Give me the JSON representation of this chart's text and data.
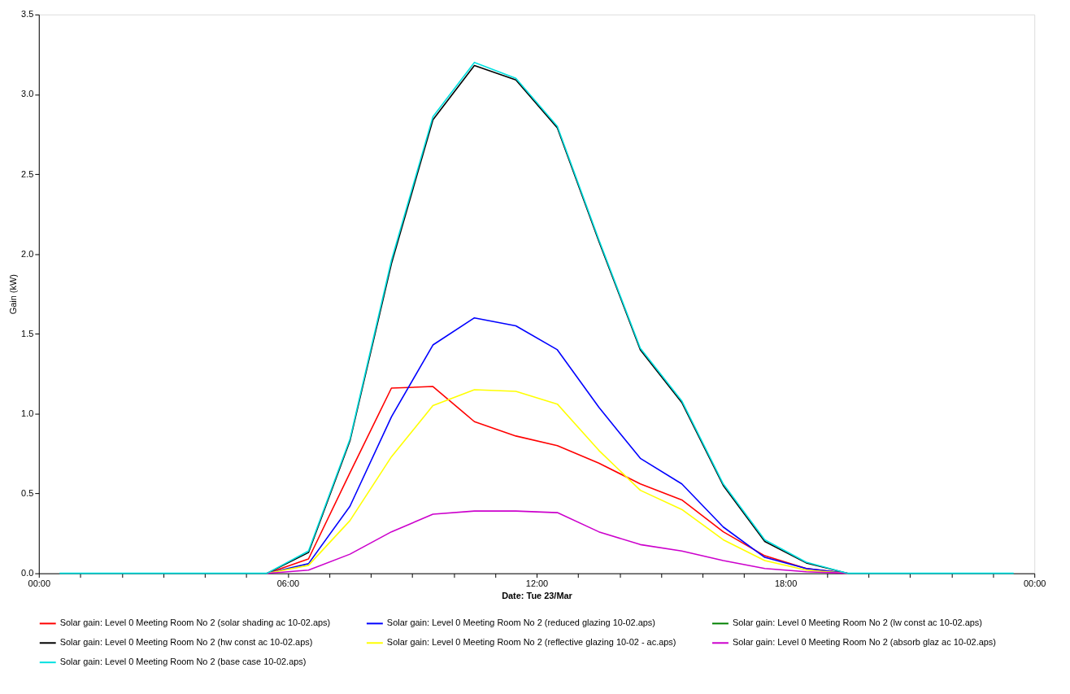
{
  "chart_data": {
    "type": "line",
    "xlabel": "Date: Tue 23/Mar",
    "ylabel": "Gain (kW)",
    "x": [
      0.5,
      1.5,
      2.5,
      3.5,
      4.5,
      5.5,
      6.5,
      7.5,
      8.5,
      9.5,
      10.5,
      11.5,
      12.5,
      13.5,
      14.5,
      15.5,
      16.5,
      17.5,
      18.5,
      19.5,
      20.5,
      21.5,
      22.5,
      23.5
    ],
    "xlim": [
      0,
      24
    ],
    "xticks": [
      {
        "value": 0,
        "label": "00:00"
      },
      {
        "value": 1,
        "label": null
      },
      {
        "value": 2,
        "label": null
      },
      {
        "value": 3,
        "label": null
      },
      {
        "value": 4,
        "label": null
      },
      {
        "value": 5,
        "label": null
      },
      {
        "value": 6,
        "label": "06:00"
      },
      {
        "value": 7,
        "label": null
      },
      {
        "value": 8,
        "label": null
      },
      {
        "value": 9,
        "label": null
      },
      {
        "value": 10,
        "label": null
      },
      {
        "value": 11,
        "label": null
      },
      {
        "value": 12,
        "label": "12:00"
      },
      {
        "value": 13,
        "label": null
      },
      {
        "value": 14,
        "label": null
      },
      {
        "value": 15,
        "label": null
      },
      {
        "value": 16,
        "label": null
      },
      {
        "value": 17,
        "label": null
      },
      {
        "value": 18,
        "label": "18:00"
      },
      {
        "value": 19,
        "label": null
      },
      {
        "value": 20,
        "label": null
      },
      {
        "value": 21,
        "label": null
      },
      {
        "value": 22,
        "label": null
      },
      {
        "value": 23,
        "label": null
      },
      {
        "value": 24,
        "label": "00:00"
      }
    ],
    "ylim": [
      0,
      3.5
    ],
    "yticks": [
      {
        "value": 0,
        "label": "0.0"
      },
      {
        "value": 0.5,
        "label": "0.5"
      },
      {
        "value": 1,
        "label": "1.0"
      },
      {
        "value": 1.5,
        "label": "1.5"
      },
      {
        "value": 2,
        "label": "2.0"
      },
      {
        "value": 2.5,
        "label": "2.5"
      },
      {
        "value": 3,
        "label": "3.0"
      },
      {
        "value": 3.5,
        "label": "3.5"
      }
    ],
    "grid": false,
    "legend": "bottom",
    "marker": "none",
    "line_style": "solid",
    "series": [
      {
        "name": "Solar gain: Level 0 Meeting Room No 2 (solar shading ac 10-02.aps)",
        "color": "#ff0000",
        "values": [
          null,
          null,
          null,
          null,
          null,
          0,
          0.09,
          0.63,
          1.16,
          1.17,
          0.95,
          0.86,
          0.8,
          0.69,
          0.56,
          0.46,
          0.26,
          0.11,
          0.03,
          0,
          null,
          null,
          null,
          null
        ]
      },
      {
        "name": "Solar gain: Level 0 Meeting Room No 2 (reduced glazing 10-02.aps)",
        "color": "#0000ff",
        "values": [
          null,
          null,
          null,
          null,
          null,
          0,
          0.06,
          0.42,
          0.98,
          1.43,
          1.6,
          1.55,
          1.4,
          1.04,
          0.72,
          0.56,
          0.29,
          0.1,
          0.03,
          0,
          null,
          null,
          null,
          null
        ]
      },
      {
        "name": "Solar gain: Level 0 Meeting Room No 2 (lw const ac 10-02.aps)",
        "color": "#008000",
        "values": [
          null,
          null,
          null,
          null,
          null,
          null,
          null,
          null,
          null,
          null,
          null,
          null,
          null,
          null,
          null,
          null,
          null,
          null,
          null,
          null,
          null,
          null,
          null,
          null
        ]
      },
      {
        "name": "Solar gain: Level 0 Meeting Room No 2 (hw const ac 10-02.aps)",
        "color": "#000000",
        "values": [
          null,
          null,
          null,
          null,
          null,
          0,
          0.13,
          0.83,
          1.94,
          2.84,
          3.18,
          3.09,
          2.79,
          2.08,
          1.4,
          1.07,
          0.55,
          0.2,
          0.065,
          0,
          null,
          null,
          null,
          null
        ]
      },
      {
        "name": "Solar gain: Level 0 Meeting Room No 2 (reflective glazing 10-02 - ac.aps)",
        "color": "#ffff00",
        "values": [
          null,
          null,
          null,
          null,
          null,
          0,
          0.05,
          0.33,
          0.73,
          1.05,
          1.15,
          1.14,
          1.06,
          0.77,
          0.52,
          0.4,
          0.21,
          0.08,
          0.02,
          0,
          null,
          null,
          null,
          null
        ]
      },
      {
        "name": "Solar gain: Level 0 Meeting Room No 2 (absorb glaz ac 10-02.aps)",
        "color": "#cc00cc",
        "values": [
          null,
          null,
          null,
          null,
          null,
          0,
          0.02,
          0.12,
          0.26,
          0.37,
          0.39,
          0.39,
          0.38,
          0.26,
          0.18,
          0.14,
          0.08,
          0.03,
          0.01,
          0,
          null,
          null,
          null,
          null
        ]
      },
      {
        "name": "Solar gain: Level 0 Meeting Room No 2 (base case 10-02.aps)",
        "color": "#00e0e0",
        "values": [
          0,
          0,
          0,
          0,
          0,
          0,
          0.14,
          0.84,
          1.96,
          2.86,
          3.2,
          3.1,
          2.8,
          2.09,
          1.41,
          1.08,
          0.56,
          0.21,
          0.07,
          0,
          0,
          0,
          0,
          0
        ]
      }
    ]
  }
}
